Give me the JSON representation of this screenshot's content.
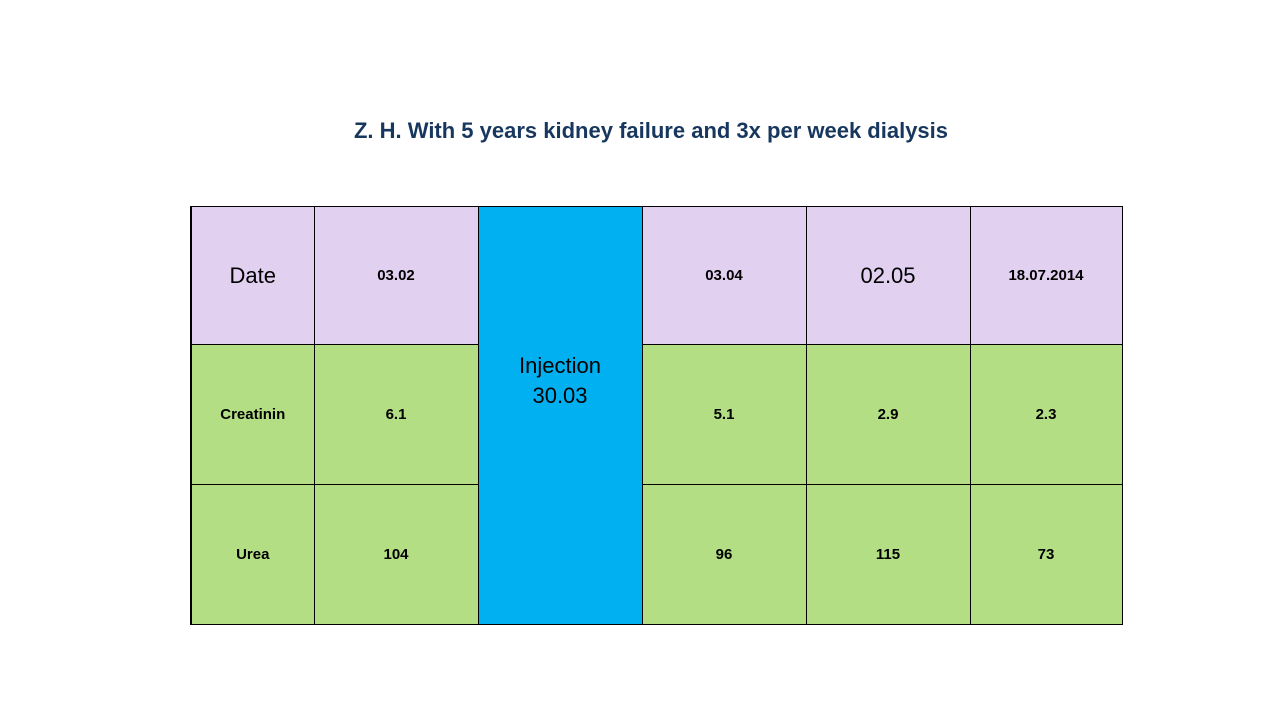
{
  "title": "Z. H. With 5 years kidney failure and 3x per week dialysis",
  "table": {
    "header": {
      "label": "Date",
      "dates": [
        "03.02",
        "03.04",
        "02.05",
        "18.07.2014"
      ]
    },
    "injection": {
      "line1": "Injection",
      "line2": "30.03"
    },
    "rows": [
      {
        "label": "Creatinin",
        "values": [
          "6.1",
          "5.1",
          "2.9",
          "2.3"
        ]
      },
      {
        "label": "Urea",
        "values": [
          "104",
          "96",
          "115",
          "73"
        ]
      }
    ]
  },
  "colors": {
    "title": "#17375e",
    "header_row": "#e2d0f1",
    "data_rows": "#b3de84",
    "injection_column": "#00b0f0"
  }
}
